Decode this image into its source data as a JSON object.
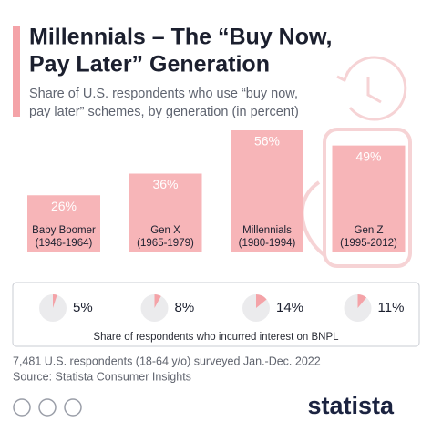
{
  "chart_data": [
    {
      "type": "bar",
      "title": [
        "Millennials – The “Buy Now,",
        "Pay Later” Generation"
      ],
      "subtitle": [
        "Share of U.S. respondents who use “buy now,",
        "pay later” schemes, by generation (in percent)"
      ],
      "categories": [
        "Baby Boomer",
        "Gen X",
        "Millennials",
        "Gen Z"
      ],
      "subcategories": [
        "(1946-1964)",
        "(1965-1979)",
        "(1980-1994)",
        "(1995-2012)"
      ],
      "values": [
        26,
        36,
        56,
        49
      ],
      "value_labels": [
        "26%",
        "36%",
        "56%",
        "49%"
      ],
      "color": "#f7b5b8"
    },
    {
      "type": "pie",
      "values": [
        5,
        8,
        14,
        11
      ],
      "value_labels": [
        "5%",
        "8%",
        "14%",
        "11%"
      ],
      "caption": "Share of respondents who incurred interest on BNPL",
      "color": "#f4a3a8"
    }
  ],
  "note": "7,481 U.S. respondents (18-64 y/o) surveyed Jan.-Dec. 2022",
  "source": "Source: Statista Consumer Insights",
  "brand": "statista"
}
